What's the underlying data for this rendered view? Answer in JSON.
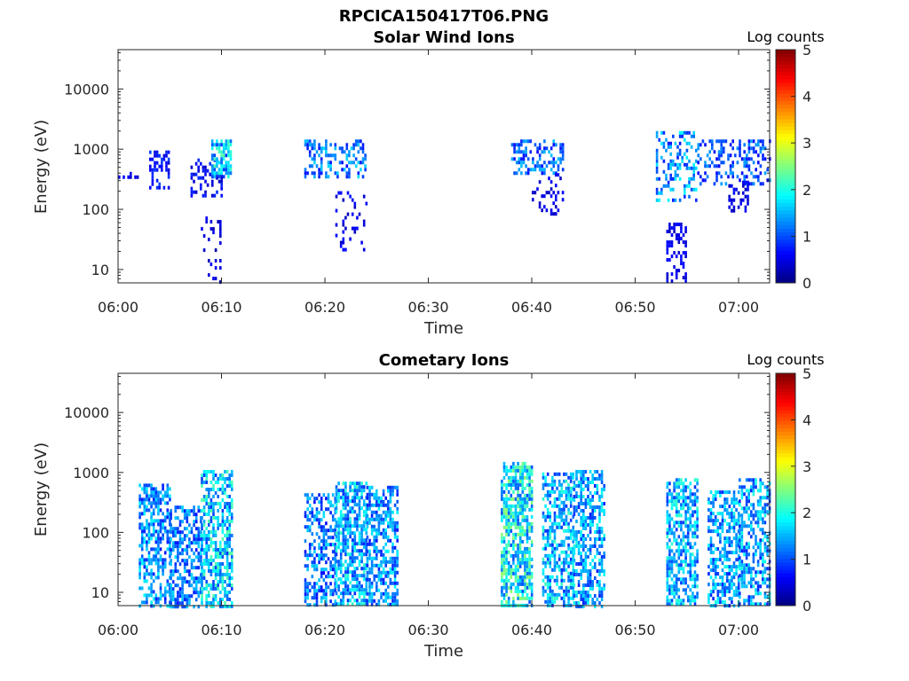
{
  "figure": {
    "title": "RPCICA150417T06.PNG"
  },
  "chart_data": [
    {
      "type": "heatmap",
      "title": "Solar Wind Ions",
      "xlabel": "Time",
      "ylabel": "Energy (eV)",
      "yscale": "log",
      "xlim": [
        "06:00",
        "07:03"
      ],
      "ylim": [
        6,
        45000
      ],
      "xticks": [
        "06:00",
        "06:10",
        "06:20",
        "06:30",
        "06:40",
        "06:50",
        "07:00"
      ],
      "yticks": [
        "10",
        "100",
        "1000",
        "10000"
      ],
      "colorbar": {
        "label": "Log counts",
        "range": [
          0,
          5
        ],
        "ticks": [
          "0",
          "1",
          "2",
          "3",
          "4",
          "5"
        ],
        "colormap": "jet"
      },
      "grid": false,
      "clusters": [
        {
          "t_start": "06:00",
          "t_end": "06:01",
          "e_min": 330,
          "e_max": 420,
          "level": 0.5,
          "density": 0.5
        },
        {
          "t_start": "06:03",
          "t_end": "06:04",
          "e_min": 240,
          "e_max": 950,
          "level": 0.7,
          "density": 0.45
        },
        {
          "t_start": "06:07",
          "t_end": "06:09",
          "e_min": 180,
          "e_max": 700,
          "level": 0.6,
          "density": 0.4
        },
        {
          "t_start": "06:09",
          "t_end": "06:10",
          "e_min": 350,
          "e_max": 1450,
          "level": 1.6,
          "density": 0.7
        },
        {
          "t_start": "06:08",
          "t_end": "06:09",
          "e_min": 6,
          "e_max": 100,
          "level": 0.4,
          "density": 0.15
        },
        {
          "t_start": "06:18",
          "t_end": "06:23",
          "e_min": 350,
          "e_max": 1450,
          "level": 1.2,
          "density": 0.4
        },
        {
          "t_start": "06:21",
          "t_end": "06:23",
          "e_min": 20,
          "e_max": 200,
          "level": 0.5,
          "density": 0.15
        },
        {
          "t_start": "06:38",
          "t_end": "06:42",
          "e_min": 400,
          "e_max": 1450,
          "level": 1.1,
          "density": 0.35
        },
        {
          "t_start": "06:40",
          "t_end": "06:42",
          "e_min": 80,
          "e_max": 400,
          "level": 0.5,
          "density": 0.25
        },
        {
          "t_start": "06:52",
          "t_end": "06:55",
          "e_min": 150,
          "e_max": 2000,
          "level": 1.3,
          "density": 0.35
        },
        {
          "t_start": "06:53",
          "t_end": "06:54",
          "e_min": 6,
          "e_max": 60,
          "level": 0.5,
          "density": 0.4
        },
        {
          "t_start": "06:56",
          "t_end": "07:02",
          "e_min": 250,
          "e_max": 1450,
          "level": 1.0,
          "density": 0.35
        },
        {
          "t_start": "06:59",
          "t_end": "07:00",
          "e_min": 100,
          "e_max": 300,
          "level": 0.5,
          "density": 0.35
        }
      ]
    },
    {
      "type": "heatmap",
      "title": "Cometary Ions",
      "xlabel": "Time",
      "ylabel": "Energy (eV)",
      "yscale": "log",
      "xlim": [
        "06:00",
        "07:03"
      ],
      "ylim": [
        6,
        45000
      ],
      "xticks": [
        "06:00",
        "06:10",
        "06:20",
        "06:30",
        "06:40",
        "06:50",
        "07:00"
      ],
      "yticks": [
        "10",
        "100",
        "1000",
        "10000"
      ],
      "colorbar": {
        "label": "Log counts",
        "range": [
          0,
          5
        ],
        "ticks": [
          "0",
          "1",
          "2",
          "3",
          "4",
          "5"
        ],
        "colormap": "jet"
      },
      "grid": false,
      "clusters": [
        {
          "t_start": "06:02",
          "t_end": "06:04",
          "e_min": 6,
          "e_max": 650,
          "level": 1.3,
          "density": 0.55
        },
        {
          "t_start": "06:05",
          "t_end": "06:07",
          "e_min": 6,
          "e_max": 280,
          "level": 1.2,
          "density": 0.55
        },
        {
          "t_start": "06:08",
          "t_end": "06:10",
          "e_min": 6,
          "e_max": 1100,
          "level": 1.6,
          "density": 0.6
        },
        {
          "t_start": "06:18",
          "t_end": "06:20",
          "e_min": 6,
          "e_max": 450,
          "level": 1.2,
          "density": 0.5
        },
        {
          "t_start": "06:21",
          "t_end": "06:23",
          "e_min": 6,
          "e_max": 700,
          "level": 1.5,
          "density": 0.65
        },
        {
          "t_start": "06:24",
          "t_end": "06:26",
          "e_min": 6,
          "e_max": 600,
          "level": 1.3,
          "density": 0.6
        },
        {
          "t_start": "06:37",
          "t_end": "06:39",
          "e_min": 6,
          "e_max": 1500,
          "level": 1.8,
          "density": 0.7
        },
        {
          "t_start": "06:41",
          "t_end": "06:43",
          "e_min": 6,
          "e_max": 1000,
          "level": 1.5,
          "density": 0.6
        },
        {
          "t_start": "06:44",
          "t_end": "06:46",
          "e_min": 6,
          "e_max": 1100,
          "level": 1.4,
          "density": 0.55
        },
        {
          "t_start": "06:53",
          "t_end": "06:55",
          "e_min": 6,
          "e_max": 800,
          "level": 1.5,
          "density": 0.6
        },
        {
          "t_start": "06:57",
          "t_end": "06:59",
          "e_min": 6,
          "e_max": 500,
          "level": 1.4,
          "density": 0.55
        },
        {
          "t_start": "07:00",
          "t_end": "07:02",
          "e_min": 6,
          "e_max": 800,
          "level": 1.4,
          "density": 0.55
        }
      ]
    }
  ]
}
